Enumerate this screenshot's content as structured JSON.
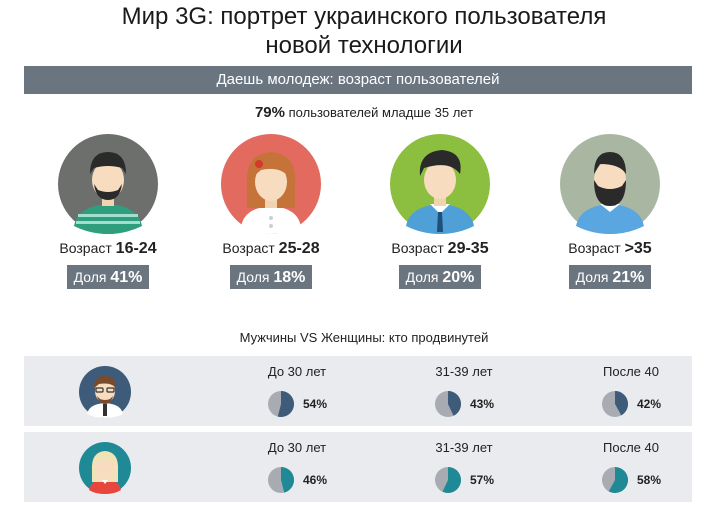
{
  "title_line1": "Мир 3G: портрет украинского пользователя",
  "title_line2": "новой технологии",
  "banner": "Даешь молодеж: возраст пользователей",
  "summary": {
    "pct": "79%",
    "text": "пользователей младше 35 лет"
  },
  "age_groups": [
    {
      "label": "Возраст",
      "range": "16-24",
      "share_label": "Доля",
      "share": "41%",
      "avatar": "young-man-green-shirt-icon"
    },
    {
      "label": "Возраст",
      "range": "25-28",
      "share_label": "Доля",
      "share": "18%",
      "avatar": "young-woman-red-hair-icon"
    },
    {
      "label": "Возраст",
      "range": "29-35",
      "share_label": "Доля",
      "share": "20%",
      "avatar": "man-with-tie-icon"
    },
    {
      "label": "Возраст",
      "range": ">35",
      "share_label": "Доля",
      "share": "21%",
      "avatar": "bearded-man-icon"
    }
  ],
  "vs_title": "Мужчины VS Женщины: кто продвинутей",
  "men": {
    "avatar": "man-glasses-icon",
    "cells": [
      {
        "ages": "До 30 лет",
        "pct": "54%",
        "value": 54
      },
      {
        "ages": "31-39 лет",
        "pct": "43%",
        "value": 43
      },
      {
        "ages": "После 40",
        "pct": "42%",
        "value": 42
      }
    ]
  },
  "women": {
    "avatar": "woman-blonde-icon",
    "cells": [
      {
        "ages": "До 30 лет",
        "pct": "46%",
        "value": 46
      },
      {
        "ages": "31-39 лет",
        "pct": "57%",
        "value": 57
      },
      {
        "ages": "После 40",
        "pct": "58%",
        "value": 58
      }
    ]
  },
  "colors": {
    "banner": "#6b7580",
    "men_pie": "#3e5b7a",
    "women_pie": "#1f8a96",
    "pie_rest": "#a8acb2"
  }
}
